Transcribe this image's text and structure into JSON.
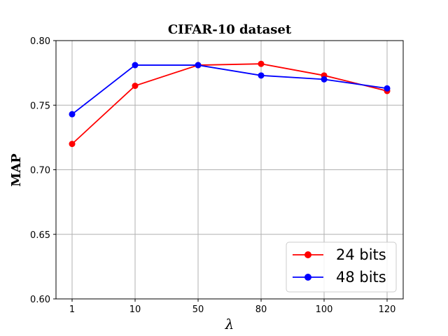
{
  "chart_data": {
    "type": "line",
    "title": "CIFAR-10 dataset",
    "xlabel": "λ",
    "ylabel": "MAP",
    "categories": [
      "1",
      "10",
      "50",
      "80",
      "100",
      "120"
    ],
    "ylim": [
      0.6,
      0.8
    ],
    "yticks": [
      "0.60",
      "0.65",
      "0.70",
      "0.75",
      "0.80"
    ],
    "grid": true,
    "legend_position": "bottom-right",
    "series": [
      {
        "name": "24 bits",
        "color": "#ff0000",
        "values": [
          0.72,
          0.765,
          0.781,
          0.782,
          0.773,
          0.761
        ]
      },
      {
        "name": "48 bits",
        "color": "#0000ff",
        "values": [
          0.743,
          0.781,
          0.781,
          0.773,
          0.77,
          0.763
        ]
      }
    ]
  }
}
